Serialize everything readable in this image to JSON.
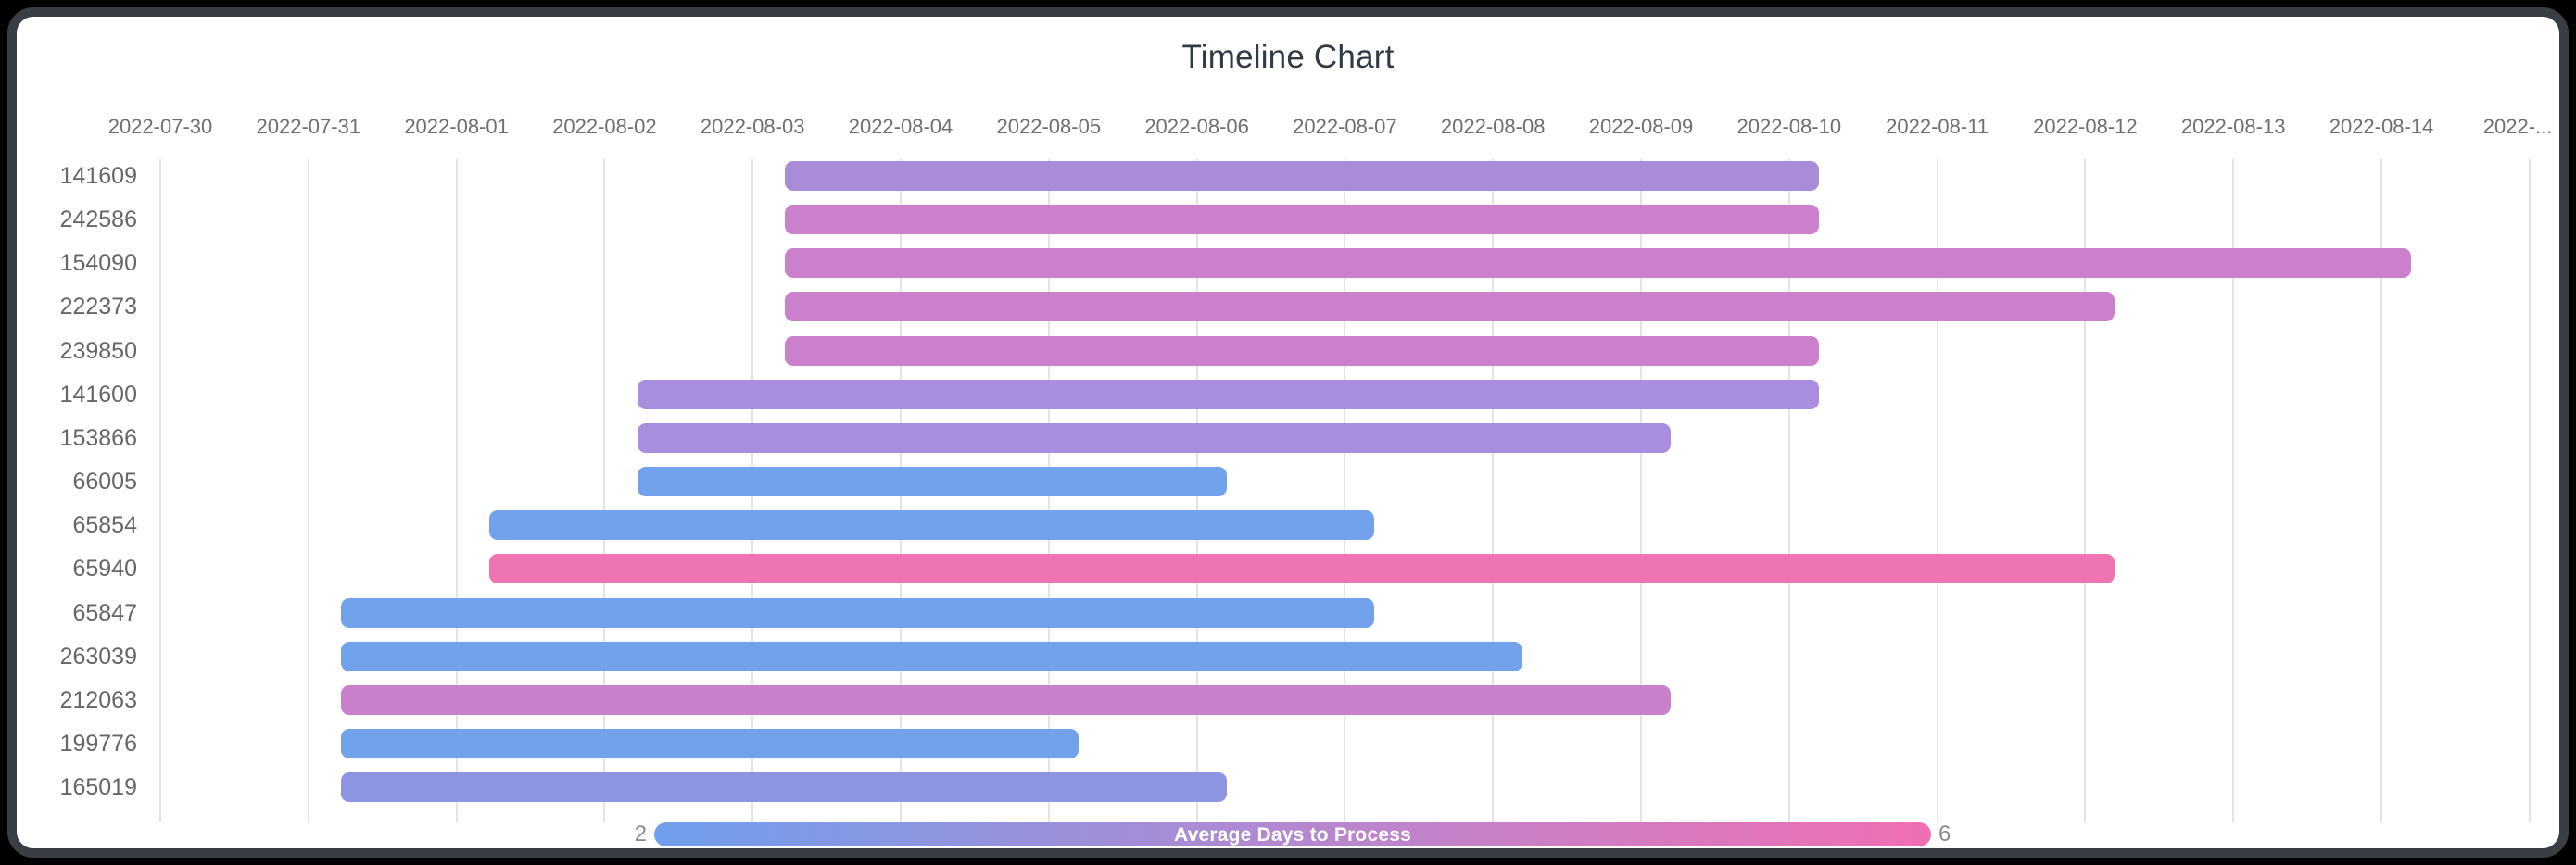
{
  "chart_data": {
    "type": "bar",
    "subtype": "timeline-gantt",
    "orientation": "horizontal",
    "title": "Timeline Chart",
    "x_axis": {
      "start_date": "2022-07-30",
      "end_date": "2022-08-15",
      "grid": true,
      "labels": [
        "2022-07-30",
        "2022-07-31",
        "2022-08-01",
        "2022-08-02",
        "2022-08-03",
        "2022-08-04",
        "2022-08-05",
        "2022-08-06",
        "2022-08-07",
        "2022-08-08",
        "2022-08-09",
        "2022-08-10",
        "2022-08-11",
        "2022-08-12",
        "2022-08-13",
        "2022-08-14",
        "2022-..."
      ],
      "dates": [
        "2022-07-30",
        "2022-07-31",
        "2022-08-01",
        "2022-08-02",
        "2022-08-03",
        "2022-08-04",
        "2022-08-05",
        "2022-08-06",
        "2022-08-07",
        "2022-08-08",
        "2022-08-09",
        "2022-08-10",
        "2022-08-11",
        "2022-08-12",
        "2022-08-13",
        "2022-08-14",
        "2022-08-15"
      ]
    },
    "rows": [
      {
        "id": "141609",
        "start": "2022-08-03",
        "end": "2022-08-10",
        "duration_days": 7,
        "color": "#a88cd8"
      },
      {
        "id": "242586",
        "start": "2022-08-03",
        "end": "2022-08-10",
        "duration_days": 7,
        "color": "#ca80ca"
      },
      {
        "id": "154090",
        "start": "2022-08-03",
        "end": "2022-08-14",
        "duration_days": 11,
        "color": "#ca80ca"
      },
      {
        "id": "222373",
        "start": "2022-08-03",
        "end": "2022-08-12",
        "duration_days": 9,
        "color": "#ca80ca"
      },
      {
        "id": "239850",
        "start": "2022-08-03",
        "end": "2022-08-10",
        "duration_days": 7,
        "color": "#ca80ca"
      },
      {
        "id": "141600",
        "start": "2022-08-02",
        "end": "2022-08-10",
        "duration_days": 8,
        "color": "#a98ee0"
      },
      {
        "id": "153866",
        "start": "2022-08-02",
        "end": "2022-08-09",
        "duration_days": 7,
        "color": "#a98ee0"
      },
      {
        "id": "66005",
        "start": "2022-08-02",
        "end": "2022-08-06",
        "duration_days": 4,
        "color": "#72a2ec"
      },
      {
        "id": "65854",
        "start": "2022-08-01",
        "end": "2022-08-07",
        "duration_days": 6,
        "color": "#72a2ec"
      },
      {
        "id": "65940",
        "start": "2022-08-01",
        "end": "2022-08-12",
        "duration_days": 11,
        "color": "#ef74b2"
      },
      {
        "id": "65847",
        "start": "2022-07-31",
        "end": "2022-08-07",
        "duration_days": 7,
        "color": "#72a2ec"
      },
      {
        "id": "263039",
        "start": "2022-07-31",
        "end": "2022-08-08",
        "duration_days": 8,
        "color": "#72a2ec"
      },
      {
        "id": "212063",
        "start": "2022-07-31",
        "end": "2022-08-09",
        "duration_days": 9,
        "color": "#c980cb"
      },
      {
        "id": "199776",
        "start": "2022-07-31",
        "end": "2022-08-05",
        "duration_days": 5,
        "color": "#72a2ec"
      },
      {
        "id": "165019",
        "start": "2022-07-31",
        "end": "2022-08-06",
        "duration_days": 6,
        "color": "#8d94e2"
      }
    ],
    "color_axis": {
      "caption": "Average Days to Process",
      "min_label": "2",
      "max_label": "6",
      "min": 2,
      "max": 6,
      "gradient": [
        "#6f9fed",
        "#b488d0",
        "#f06eb2"
      ],
      "legend_position": "bottom"
    }
  }
}
